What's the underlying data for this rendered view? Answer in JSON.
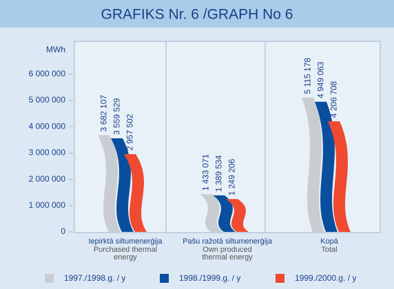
{
  "chart_data": {
    "type": "bar",
    "title": "GRAFIKS Nr. 6 /GRAPH No 6",
    "y_label": "MWh",
    "categories": [
      "Iepirktā siltumenerģija",
      "Pašu ražotā siltumenerģija",
      "Kopā"
    ],
    "categories_en": [
      "Purchased thermal energy",
      "Own produced thermal energy",
      "Total"
    ],
    "series": [
      {
        "name": "1997./1998.g. / y",
        "color": "#c9cdd1",
        "values": [
          3682107,
          1433071,
          5115178
        ],
        "value_labels": [
          "3 682 107",
          "1 433 071",
          "5 115 178"
        ]
      },
      {
        "name": "1998./1999.g. / y",
        "color": "#0a4f9e",
        "values": [
          3559529,
          1389534,
          4949063
        ],
        "value_labels": [
          "3 559 529",
          "1 389 534",
          "4 949 063"
        ]
      },
      {
        "name": "1999./2000.g. / y",
        "color": "#f04a30",
        "values": [
          2957502,
          1249206,
          4206708
        ],
        "value_labels": [
          "2 957 502",
          "1 249 206",
          "4 206 708"
        ]
      }
    ],
    "ylim": [
      0,
      7250000
    ],
    "yticks": [
      0,
      {
        "value": 1000000,
        "label": "1 000 000"
      },
      {
        "value": 2000000,
        "label": "2 000 000"
      },
      {
        "value": 3000000,
        "label": "3 000 000"
      },
      {
        "value": 4000000,
        "label": "4 000 000"
      },
      {
        "value": 5000000,
        "label": "5 000 000"
      },
      {
        "value": 6000000,
        "label": "6 000 000"
      }
    ],
    "grid": false,
    "legend": "bottom"
  }
}
